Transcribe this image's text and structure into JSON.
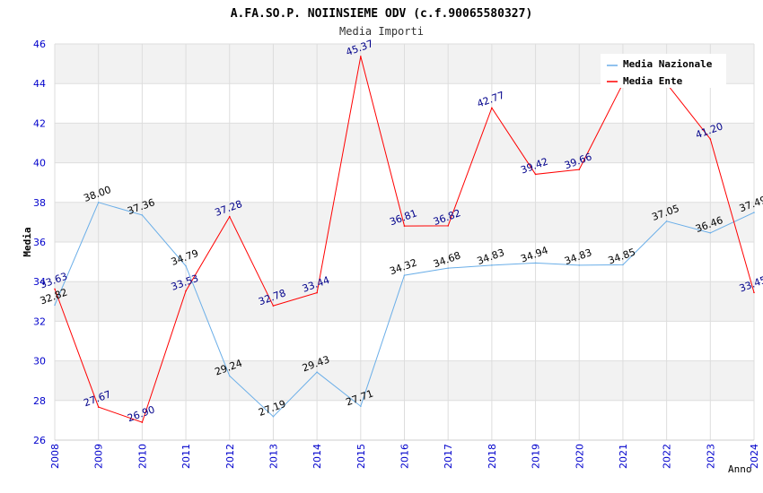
{
  "chart_data": {
    "type": "line",
    "title": "A.FA.SO.P. NOIINSIEME ODV (c.f.90065580327)",
    "subtitle": "Media Importi",
    "xlabel": "Anno",
    "ylabel": "Media",
    "ylim": [
      26,
      46
    ],
    "y_ticks": [
      "26",
      "28",
      "30",
      "32",
      "34",
      "36",
      "38",
      "40",
      "42",
      "44",
      "46"
    ],
    "categories": [
      "2008",
      "2009",
      "2010",
      "2011",
      "2012",
      "2013",
      "2014",
      "2015",
      "2016",
      "2017",
      "2018",
      "2019",
      "2020",
      "2021",
      "2022",
      "2023",
      "2024"
    ],
    "legend_position": "top-right",
    "series": [
      {
        "name": "Media Nazionale",
        "color": "#6aaee8",
        "label_color": "#000000",
        "values": [
          32.82,
          38.0,
          37.36,
          34.79,
          29.24,
          27.19,
          29.43,
          27.71,
          34.32,
          34.68,
          34.83,
          34.94,
          34.83,
          34.85,
          37.05,
          36.46,
          37.49
        ],
        "labels": [
          "32.82",
          "38.00",
          "37.36",
          "34.79",
          "29.24",
          "27.19",
          "29.43",
          "27.71",
          "34.32",
          "34.68",
          "34.83",
          "34.94",
          "34.83",
          "34.85",
          "37.05",
          "36.46",
          "37.49"
        ]
      },
      {
        "name": "Media Ente",
        "color": "#ff0000",
        "label_color": "#00008b",
        "values": [
          33.63,
          27.67,
          26.9,
          33.53,
          37.28,
          32.78,
          33.44,
          45.37,
          36.81,
          36.82,
          42.77,
          39.42,
          39.66,
          44.0,
          44.0,
          41.2,
          33.45
        ],
        "labels": [
          "33.63",
          "27.67",
          "26.90",
          "33.53",
          "37.28",
          "32.78",
          "33.44",
          "45.37",
          "36.81",
          "36.82",
          "42.77",
          "39.42",
          "39.66",
          "",
          "",
          "41.20",
          "33.45"
        ]
      }
    ],
    "colors": {
      "tick_label": "#0000cc",
      "title": "#000000",
      "band": "#f2f2f2",
      "grid": "#dddddd"
    }
  }
}
